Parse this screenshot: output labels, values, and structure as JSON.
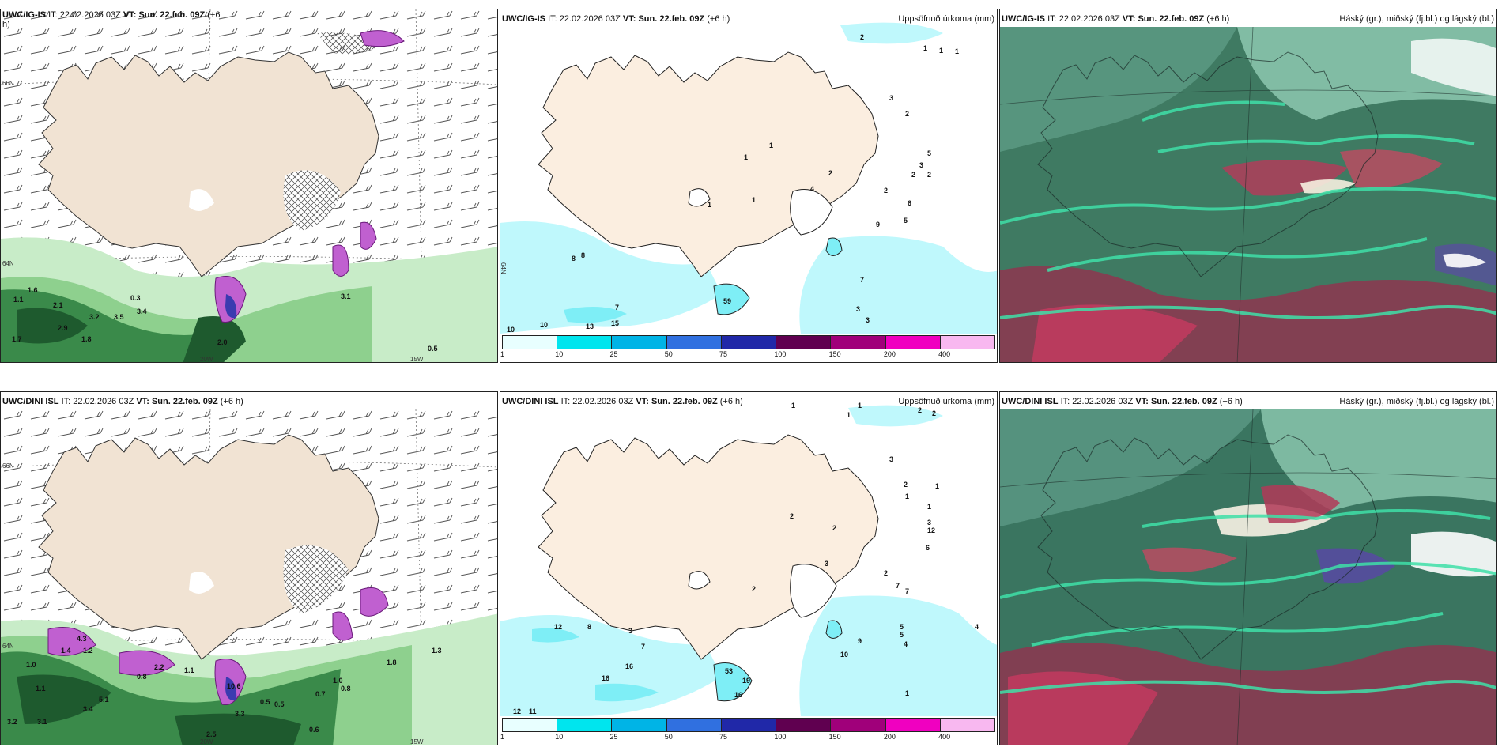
{
  "panels": {
    "p1": {
      "model": "UWC/IG-IS",
      "it_label": "IT:",
      "it": "22.02.2026 03Z",
      "vt_label": "VT:",
      "vt": "Sun. 22.feb. 09Z",
      "lead": "(+6",
      "lead2": "h)",
      "lat_top": "66N",
      "lat_mid": "64N",
      "lon1": "20W",
      "lon2": "15W",
      "values": [
        "1.6",
        "2.1",
        "1.1",
        "3.2",
        "3.5",
        "2.9",
        "3.4",
        "1.7",
        "1.8",
        "0.3",
        "2.0",
        "3.1",
        "0.5"
      ]
    },
    "p2": {
      "model": "UWC/IG-IS",
      "it_label": "IT:",
      "it": "22.02.2026 03Z",
      "vt_label": "VT:",
      "vt": "Sun. 22.feb. 09Z",
      "lead": "(+6 h)",
      "right_title": "Uppsöfnuð úrkoma (mm)",
      "lat": "64N",
      "values": [
        "2",
        "1",
        "1",
        "1",
        "3",
        "2",
        "1",
        "1",
        "2",
        "5",
        "3",
        "2",
        "2",
        "4",
        "2",
        "5",
        "9",
        "1",
        "1",
        "6",
        "7",
        "8",
        "8",
        "10",
        "10",
        "13",
        "15",
        "7",
        "3",
        "3",
        "59"
      ]
    },
    "p3": {
      "model": "UWC/IG-IS",
      "it_label": "IT:",
      "it": "22.02.2026 03Z",
      "vt_label": "VT:",
      "vt": "Sun. 22.feb. 09Z",
      "lead": "(+6 h)",
      "right_title": "Háský (gr.), miðský (fj.bl.) og lágský (bl.)"
    },
    "p4": {
      "model": "UWC/DINI ISL",
      "it_label": "IT:",
      "it": "22.02.2026 03Z",
      "vt_label": "VT:",
      "vt": "Sun. 22.feb. 09Z",
      "lead": "(+6 h)",
      "lat_top": "66N",
      "lat_mid": "64N",
      "lon1": "20W",
      "lon2": "15W",
      "values": [
        "4.3",
        "1.4",
        "1.2",
        "1.0",
        "0.8",
        "2.2",
        "1.1",
        "1.1",
        "5.1",
        "3.4",
        "3.2",
        "3.1",
        "2.5",
        "3.3",
        "0.5",
        "0.5",
        "0.7",
        "1.0",
        "0.8",
        "1.3",
        "1.8",
        "0.6",
        "10.6"
      ]
    },
    "p5": {
      "model": "UWC/DINI ISL",
      "it_label": "IT:",
      "it": "22.02.2026 03Z",
      "vt_label": "VT:",
      "vt": "Sun. 22.feb. 09Z",
      "lead": "(+6 h)",
      "right_title": "Uppsöfnuð úrkoma (mm)",
      "values": [
        "1",
        "1",
        "1",
        "2",
        "2",
        "3",
        "1",
        "2",
        "1",
        "2",
        "2",
        "3",
        "1",
        "12",
        "2",
        "6",
        "2",
        "7",
        "7",
        "3",
        "4",
        "5",
        "5",
        "4",
        "9",
        "10",
        "12",
        "8",
        "3",
        "7",
        "16",
        "16",
        "12",
        "11",
        "19",
        "16",
        "1",
        "53"
      ]
    },
    "p6": {
      "model": "UWC/DINI ISL",
      "it_label": "IT:",
      "it": "22.02.2026 03Z",
      "vt_label": "VT:",
      "vt": "Sun. 22.feb. 09Z",
      "lead": "(+6 h)",
      "right_title": "Háský (gr.), miðský (fj.bl.) og lágský (bl.)"
    }
  },
  "legend": {
    "ticks": [
      "1",
      "10",
      "25",
      "50",
      "75",
      "100",
      "150",
      "200",
      "400"
    ],
    "colors": [
      "#e8ffff",
      "#00e5ee",
      "#00b4e6",
      "#3070e0",
      "#2028a8",
      "#600050",
      "#a0007a",
      "#f000c0",
      "#f8b8f0"
    ]
  }
}
